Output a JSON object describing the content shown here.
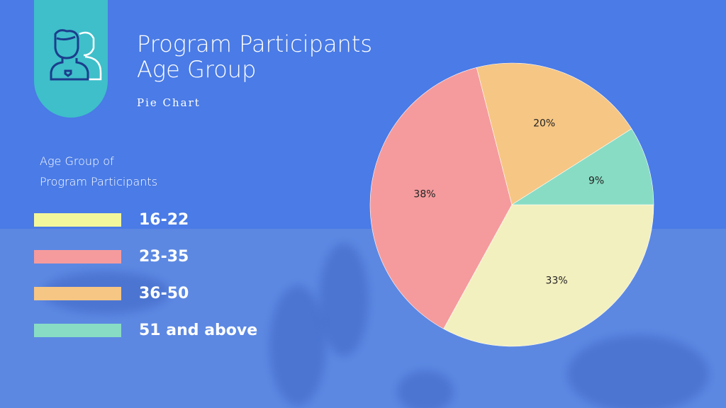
{
  "header": {
    "title_line1": "Program Participants",
    "title_line2": "Age Group",
    "subtitle": "Pie Chart",
    "icon": "users-icon"
  },
  "legend": {
    "title_line1": "Age Group of",
    "title_line2": "Program Participants"
  },
  "chart_data": {
    "type": "pie",
    "categories": [
      "16-22",
      "23-35",
      "36-50",
      "51 and above"
    ],
    "values": [
      33,
      38,
      20,
      9
    ],
    "labels": [
      "33%",
      "38%",
      "20%",
      "9%"
    ],
    "colors": [
      "#f3f0bf",
      "#f59b9d",
      "#f6c684",
      "#88dcc4"
    ],
    "legend_colors": [
      "#f3f79c",
      "#f59b9d",
      "#f6c684",
      "#88dcc4"
    ],
    "legend_position": "left"
  },
  "colors": {
    "background": "#4a7be6",
    "tab": "#3ebfca"
  }
}
